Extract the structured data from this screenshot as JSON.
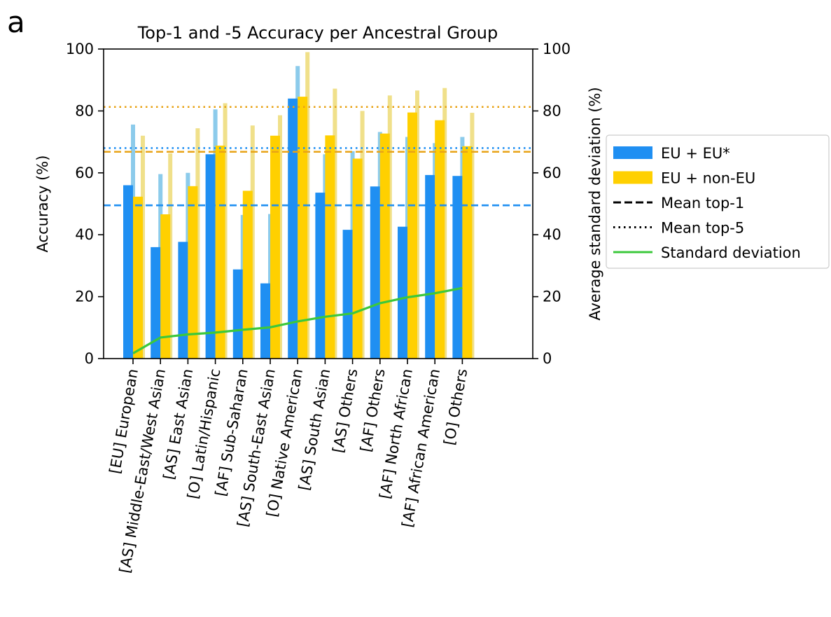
{
  "panel_label": "a",
  "chart_data": {
    "type": "bar",
    "title": "Top-1 and -5 Accuracy per Ancestral Group",
    "ylabel": "Accuracy (%)",
    "ylabel_right": "Average standard deviation (%)",
    "xlabel": "",
    "ylim": [
      0,
      100
    ],
    "ylim_right": [
      0,
      100
    ],
    "yticks": [
      0,
      20,
      40,
      60,
      80,
      100
    ],
    "yticks_right": [
      0,
      20,
      40,
      60,
      80,
      100
    ],
    "grid": false,
    "legend_position": "right",
    "categories": [
      "[EU] European",
      "[AS] Middle-East/West Asian",
      "[AS] East Asian",
      "[O] Latin/Hispanic",
      "[AF] Sub-Saharan",
      "[AS] South-East Asian",
      "[O] Native American",
      "[AS] South Asian",
      "[AS] Others",
      "[AF] Others",
      "[AF] North African",
      "[AF] African American",
      "[O] Others"
    ],
    "series": [
      {
        "name": "EU + EU*",
        "color": "#1f8ff2",
        "top5_color": "#8ccbeb",
        "top1": [
          56,
          36,
          37.7,
          66,
          28.8,
          24.3,
          84,
          53.6,
          41.6,
          55.6,
          42.6,
          59.3,
          59
        ],
        "top5": [
          75.6,
          59.6,
          60,
          80.5,
          46.4,
          46.7,
          94.5,
          66,
          67,
          73.2,
          71.6,
          69.6,
          71.6
        ]
      },
      {
        "name": "EU + non-EU",
        "color": "#ffd000",
        "top5_color": "#f0e08a",
        "top1": [
          52.3,
          46.6,
          55.7,
          68.8,
          54.2,
          72,
          84.6,
          72.1,
          64.6,
          72.7,
          79.5,
          77,
          68.6
        ],
        "top5": [
          72,
          66.3,
          74.4,
          82.5,
          75.3,
          78.6,
          99,
          87.2,
          80,
          85,
          86.6,
          87.4,
          79.4
        ]
      }
    ],
    "mean_lines": [
      {
        "series": "EU + EU*",
        "kind": "top-1",
        "value": 49.5,
        "color": "#1f8ff2"
      },
      {
        "series": "EU + non-EU",
        "kind": "top-1",
        "value": 66.8,
        "color": "#e8a317"
      },
      {
        "series": "EU + EU*",
        "kind": "top-5",
        "value": 68,
        "color": "#1f8ff2"
      },
      {
        "series": "EU + non-EU",
        "kind": "top-5",
        "value": 81.3,
        "color": "#e8a317"
      }
    ],
    "std_dev": {
      "name": "Standard deviation",
      "color": "#3cc83c",
      "values": [
        1.7,
        6.8,
        7.8,
        8.4,
        9.3,
        10.1,
        12,
        13.5,
        14.6,
        17.9,
        19.8,
        21.1,
        22.8
      ]
    },
    "legend": [
      {
        "label": "EU + EU*",
        "kind": "patch",
        "color": "#1f8ff2"
      },
      {
        "label": "EU + non-EU",
        "kind": "patch",
        "color": "#ffd000"
      },
      {
        "label": "Mean top-1",
        "kind": "dashed",
        "color": "#000000"
      },
      {
        "label": "Mean top-5",
        "kind": "dotted",
        "color": "#000000"
      },
      {
        "label": "Standard deviation",
        "kind": "line",
        "color": "#3cc83c"
      }
    ]
  }
}
